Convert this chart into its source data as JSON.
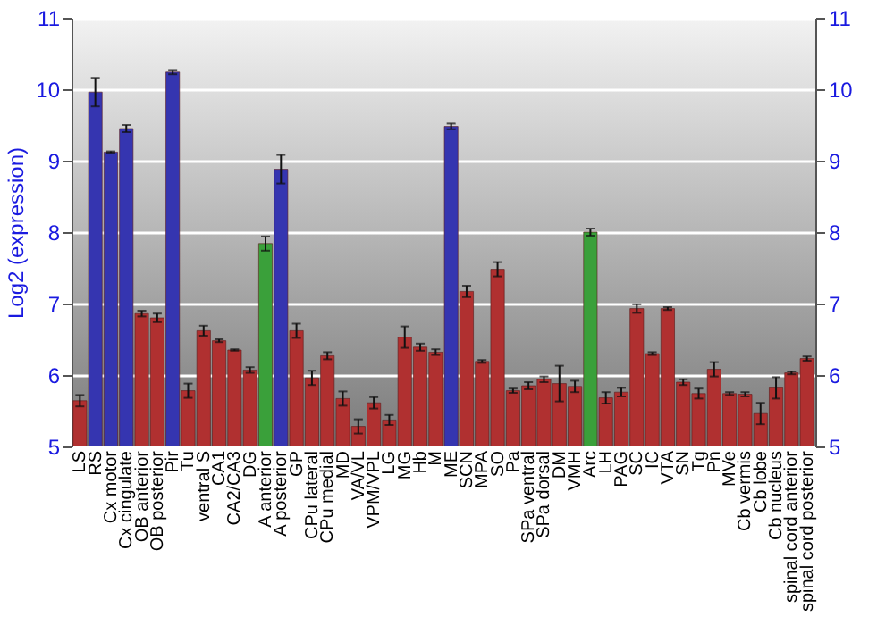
{
  "chart_data": {
    "type": "bar",
    "ylabel": "Log2 (expression)",
    "categories": [
      "LS",
      "RS",
      "Cx motor",
      "Cx cingulate",
      "OB anterior",
      "OB posterior",
      "Pir",
      "Tu",
      "ventral S",
      "CA1",
      "CA2/CA3",
      "DG",
      "A anterior",
      "A posterior",
      "GP",
      "CPu lateral",
      "CPu medial",
      "MD",
      "VA/VL",
      "VPM/VPL",
      "LG",
      "MG",
      "Hb",
      "M",
      "ME",
      "SCN",
      "MPA",
      "SO",
      "Pa",
      "SPa ventral",
      "SPa dorsal",
      "DM",
      "VMH",
      "Arc",
      "LH",
      "PAG",
      "SC",
      "IC",
      "VTA",
      "SN",
      "Tg",
      "Pn",
      "MVe",
      "Cb vermis",
      "Cb lobe",
      "Cb nucleus",
      "spinal cord anterior",
      "spinal cord posterior"
    ],
    "values": [
      5.64,
      9.96,
      9.12,
      9.45,
      6.86,
      6.8,
      10.24,
      5.78,
      6.62,
      6.48,
      6.35,
      6.07,
      7.84,
      8.88,
      6.62,
      5.96,
      6.27,
      5.67,
      5.28,
      5.61,
      5.37,
      6.53,
      6.39,
      6.32,
      9.48,
      7.17,
      6.19,
      7.48,
      5.78,
      5.85,
      5.94,
      5.88,
      5.84,
      8.0,
      5.68,
      5.76,
      6.93,
      6.3,
      6.93,
      5.9,
      5.74,
      6.08,
      5.74,
      5.73,
      5.46,
      5.82,
      6.03,
      6.23
    ],
    "errors": [
      0.08,
      0.2,
      0.01,
      0.05,
      0.04,
      0.06,
      0.03,
      0.1,
      0.07,
      0.02,
      0.01,
      0.04,
      0.1,
      0.2,
      0.1,
      0.1,
      0.05,
      0.1,
      0.1,
      0.08,
      0.07,
      0.15,
      0.05,
      0.04,
      0.04,
      0.08,
      0.02,
      0.1,
      0.03,
      0.05,
      0.04,
      0.25,
      0.08,
      0.05,
      0.08,
      0.06,
      0.06,
      0.02,
      0.02,
      0.04,
      0.07,
      0.1,
      0.02,
      0.03,
      0.15,
      0.15,
      0.02,
      0.03
    ],
    "colors": [
      "#b03030",
      "#3535b0",
      "#3535b0",
      "#3535b0",
      "#b03030",
      "#b03030",
      "#3535b0",
      "#b03030",
      "#b03030",
      "#b03030",
      "#b03030",
      "#b03030",
      "#3aa03a",
      "#3535b0",
      "#b03030",
      "#b03030",
      "#b03030",
      "#b03030",
      "#b03030",
      "#b03030",
      "#b03030",
      "#b03030",
      "#b03030",
      "#b03030",
      "#3535b0",
      "#b03030",
      "#b03030",
      "#b03030",
      "#b03030",
      "#b03030",
      "#b03030",
      "#b03030",
      "#b03030",
      "#3aa03a",
      "#b03030",
      "#b03030",
      "#b03030",
      "#b03030",
      "#b03030",
      "#b03030",
      "#b03030",
      "#b03030",
      "#b03030",
      "#b03030",
      "#b03030",
      "#b03030",
      "#b03030",
      "#b03030"
    ],
    "ylim": [
      5,
      11
    ],
    "yticks": [
      5,
      6,
      7,
      8,
      9,
      10,
      11
    ],
    "y2lim": [
      5,
      11
    ],
    "y2ticks": [
      5,
      6,
      7,
      8,
      9,
      10,
      11
    ],
    "grid": "y"
  }
}
